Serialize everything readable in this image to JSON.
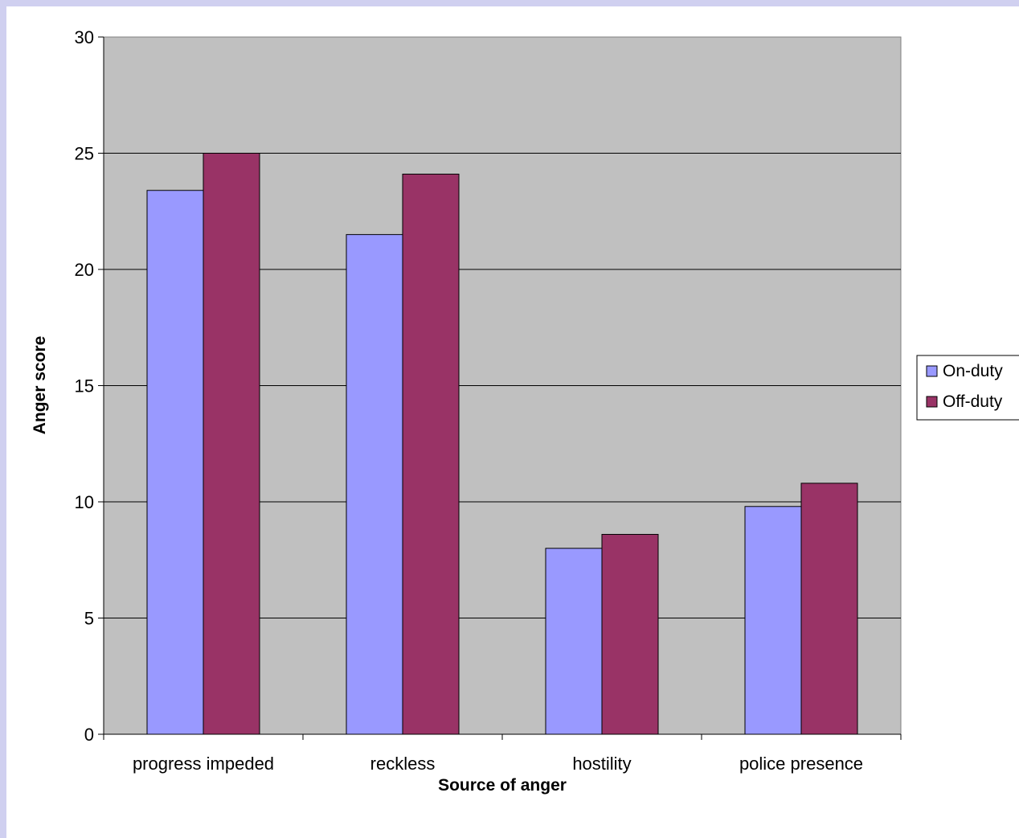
{
  "chart_data": {
    "type": "bar",
    "categories": [
      "progress impeded",
      "reckless",
      "hostility",
      "police presence"
    ],
    "series": [
      {
        "name": "On-duty",
        "values": [
          23.4,
          21.5,
          8.0,
          9.8
        ],
        "color": "#9999ff"
      },
      {
        "name": "Off-duty",
        "values": [
          25.0,
          24.1,
          8.6,
          10.8
        ],
        "color": "#993366"
      }
    ],
    "title": "",
    "xlabel": "Source of anger",
    "ylabel": "Anger score",
    "ylim": [
      0,
      30
    ],
    "yticks": [
      0,
      5,
      10,
      15,
      20,
      25,
      30
    ],
    "grid": true,
    "plot_background": "#c0c0c0",
    "legend_position": "right"
  }
}
